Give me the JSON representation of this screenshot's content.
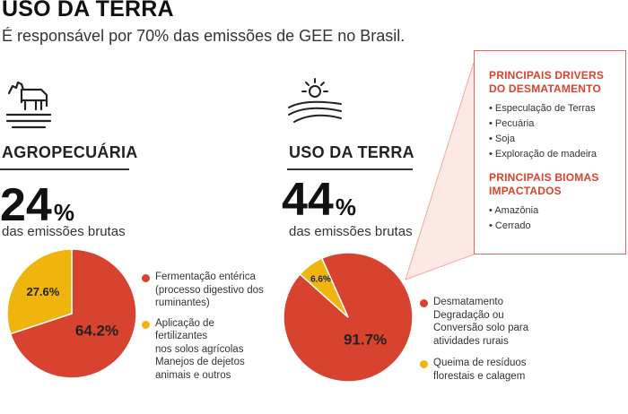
{
  "header": {
    "title": "USO DA TERRA",
    "subtitle": "É responsável por 70% das emissões de GEE no Brasil."
  },
  "colors": {
    "red": "#d8432f",
    "yellow": "#efb50d",
    "callout_border": "#e2685a"
  },
  "icons": {
    "left": "cow-on-field-icon",
    "right": "sun-over-field-icon"
  },
  "left_section": {
    "title": "AGROPECUÁRIA",
    "value": "24",
    "unit": "%",
    "sublabel": "das emissões brutas"
  },
  "right_section": {
    "title": "USO DA TERRA",
    "value": "44",
    "unit": "%",
    "sublabel": "das emissões brutas"
  },
  "callout": {
    "drivers_title": "PRINCIPAIS DRIVERS\nDO DESMATAMENTO",
    "drivers": [
      "Especulação de Terras",
      "Pecuária",
      "Soja",
      "Exploração de madeira"
    ],
    "biomes_title": "PRINCIPAIS BIOMAS\nIMPACTADOS",
    "biomes": [
      "Amazônia",
      "Cerrado"
    ]
  },
  "chart_data": [
    {
      "type": "pie",
      "title": "",
      "slices": [
        {
          "label": "Fermentação entérica\n(processo digestivo dos\nruminantes)",
          "value": 64.2,
          "display": "64.2%",
          "color": "#d8432f"
        },
        {
          "label": "Aplicação de\nfertilizantes\nnos solos agrícolas\nManejos de dejetos\nanimais e outros",
          "value": 27.6,
          "display": "27.6%",
          "color": "#efb50d"
        }
      ]
    },
    {
      "type": "pie",
      "title": "",
      "slices": [
        {
          "label": "Desmatamento\nDegradação ou\nConversão solo para\natividades rurais",
          "value": 91.7,
          "display": "91.7%",
          "color": "#d8432f"
        },
        {
          "label": "Queima de resíduos\nflorestais e calagem",
          "value": 6.6,
          "display": "6.6%",
          "color": "#efb50d"
        }
      ]
    }
  ]
}
